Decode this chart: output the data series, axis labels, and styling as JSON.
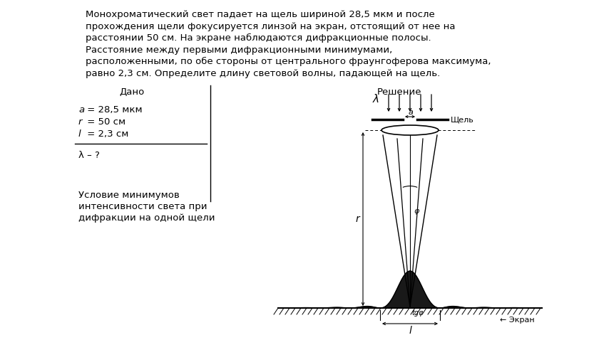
{
  "bg_color": "#ffffff",
  "text_color": "#000000",
  "title_lines": [
    "Монохроматический свет падает на щель шириной 28,5 мкм и после",
    "прохождения щели фокусируется линзой на экран, отстоящий от нее на",
    "расстоянии 50 см. На экране наблюдаются дифракционные полосы.",
    "Расстояние между первыми дифракционными минимумами,",
    "расположенными, по обе стороны от центрального фраунгоферова максимума,",
    "равно 2,3 см. Определите длину световой волны, падающей на щель."
  ],
  "dado_label": "Дано",
  "reshenie_label": "Решение",
  "dado_vars": [
    "a",
    "r",
    "l"
  ],
  "dado_vals": [
    " = 28,5 мкм",
    " = 50 см",
    " = 2,3 см"
  ],
  "question": "λ – ?",
  "cond_lines": [
    "Условие минимумов",
    "интенсивности света при",
    "дифракции на одной щели"
  ],
  "щель_label": "Щель",
  "экран_label": "Экран"
}
